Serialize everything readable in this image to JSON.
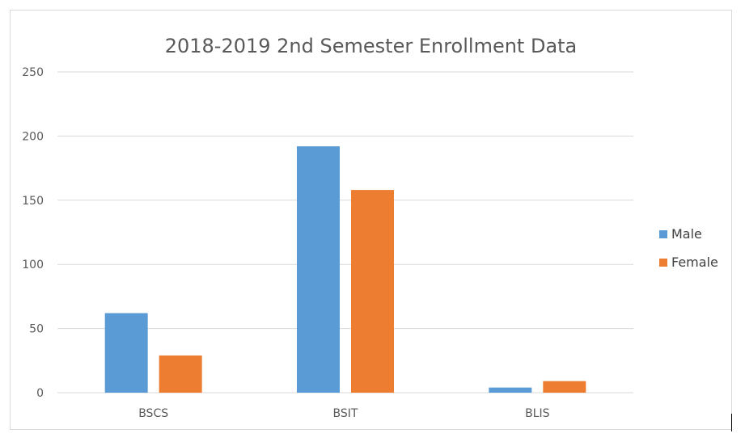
{
  "chart_data": {
    "type": "bar",
    "title": "2018-2019 2nd Semester Enrollment Data",
    "categories": [
      "BSCS",
      "BSIT",
      "BLIS"
    ],
    "series": [
      {
        "name": "Male",
        "values": [
          62,
          192,
          4
        ],
        "color": "#5b9bd5"
      },
      {
        "name": "Female",
        "values": [
          29,
          158,
          9
        ],
        "color": "#ed7d31"
      }
    ],
    "ylim": [
      0,
      250
    ],
    "yticks": [
      "0",
      "50",
      "100",
      "150",
      "200",
      "250"
    ],
    "grid": true,
    "legend_position": "right"
  }
}
